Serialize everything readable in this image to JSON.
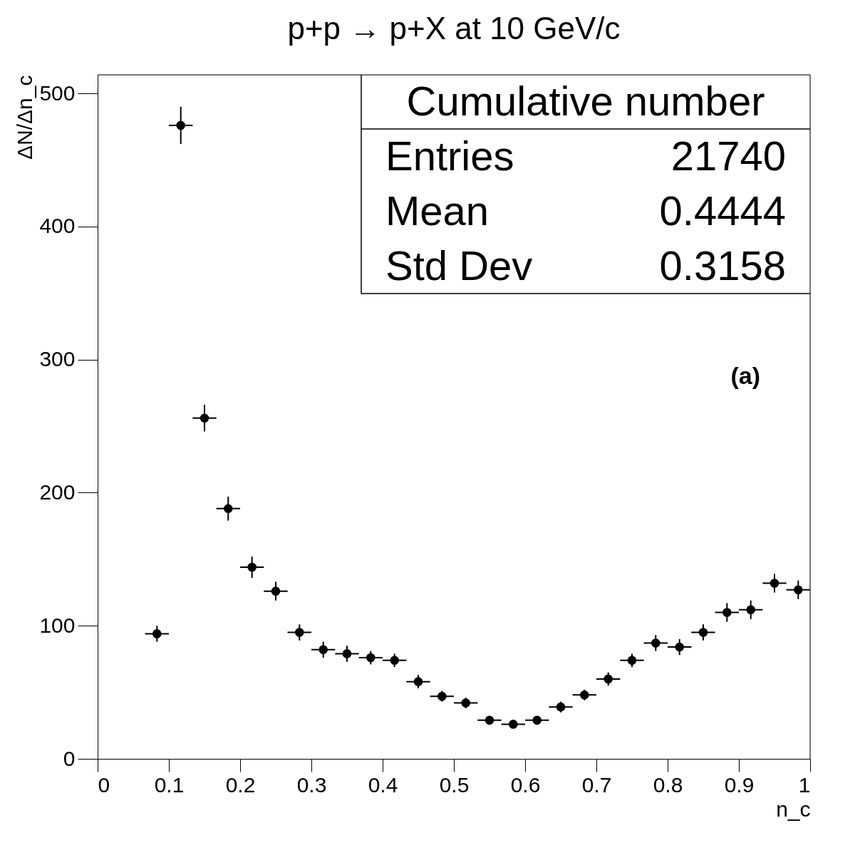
{
  "chart_data": {
    "type": "scatter",
    "title": "p+p → p+X at 10 GeV/c",
    "xlabel": "n_c",
    "ylabel": "ΔN/Δn_c",
    "x": [
      0.0833,
      0.1167,
      0.15,
      0.1833,
      0.2167,
      0.25,
      0.2833,
      0.3167,
      0.35,
      0.3833,
      0.4167,
      0.45,
      0.4833,
      0.5167,
      0.55,
      0.5833,
      0.6167,
      0.65,
      0.6833,
      0.7167,
      0.75,
      0.7833,
      0.8167,
      0.85,
      0.8833,
      0.9167,
      0.95,
      0.9833
    ],
    "series": [
      {
        "color": "#000000",
        "values": [
          94,
          476,
          256,
          188,
          144,
          126,
          95,
          82,
          79,
          76,
          74,
          58,
          47,
          42,
          29,
          26,
          29,
          39,
          48,
          60,
          74,
          87,
          84,
          95,
          110,
          112,
          132,
          127
        ],
        "errors": [
          6,
          14,
          10,
          9,
          8,
          7,
          6,
          6,
          6,
          5,
          5,
          5,
          4,
          4,
          3,
          3,
          3,
          4,
          4,
          5,
          5,
          6,
          6,
          6,
          7,
          7,
          7,
          7
        ],
        "xerrors": [
          0.0167,
          0.0167,
          0.0167,
          0.0167,
          0.0167,
          0.0167,
          0.0167,
          0.0167,
          0.0167,
          0.0167,
          0.0167,
          0.0167,
          0.0167,
          0.0167,
          0.0167,
          0.0167,
          0.0167,
          0.0167,
          0.0167,
          0.0167,
          0.0167,
          0.0167,
          0.0167,
          0.0167,
          0.0167,
          0.0167,
          0.0167,
          0.0167
        ]
      }
    ],
    "xlim": [
      0,
      1
    ],
    "ylim": [
      0,
      514
    ],
    "xticks": [
      0,
      0.1,
      0.2,
      0.3,
      0.4,
      0.5,
      0.6,
      0.7,
      0.8,
      0.9,
      1
    ],
    "yticks": [
      0,
      100,
      200,
      300,
      400,
      500
    ],
    "marker": "circle",
    "grid": false,
    "annotations": [
      "Cumulative number",
      "Entries 21740",
      "Mean 0.4444",
      "Std Dev 0.3158",
      "(a)"
    ]
  }
}
